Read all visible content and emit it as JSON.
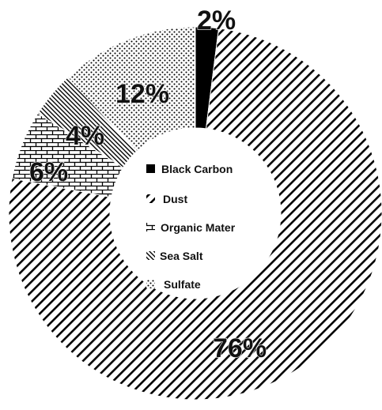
{
  "chart_data": {
    "type": "pie",
    "variant": "donut",
    "title": "",
    "legend_position": "center",
    "slices": [
      {
        "name": "Black Carbon",
        "value": 2,
        "label": "2%",
        "pattern": "solid"
      },
      {
        "name": "Dust",
        "value": 76,
        "label": "76%",
        "pattern": "diagonal-lines"
      },
      {
        "name": "Organic Mater",
        "value": 6,
        "label": "6%",
        "pattern": "bricks"
      },
      {
        "name": "Sea Salt",
        "value": 4,
        "label": "4%",
        "pattern": "dense-diagonal"
      },
      {
        "name": "Sulfate",
        "value": 12,
        "label": "12%",
        "pattern": "dots"
      }
    ]
  }
}
